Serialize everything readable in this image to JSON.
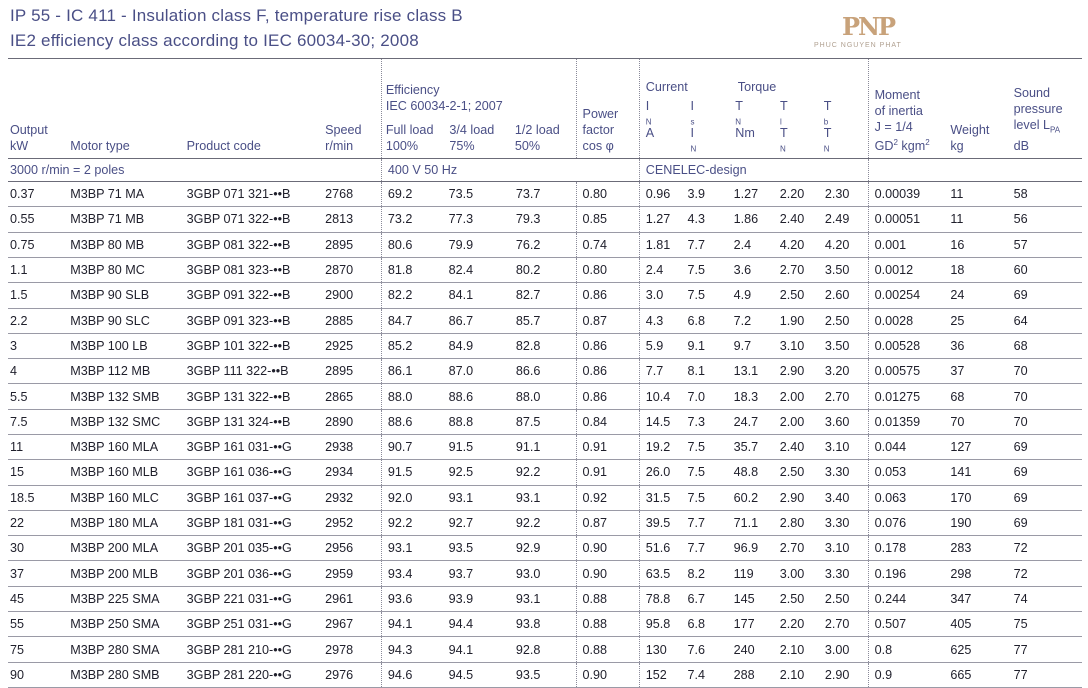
{
  "header": {
    "line1": "IP 55 - IC 411 - Insulation class F, temperature rise class B",
    "line2": "IE2 efficiency class according to IEC 60034-30; 2008"
  },
  "logo": {
    "mark": "PNP",
    "sub": "PHUC NGUYEN PHAT"
  },
  "columns": {
    "output": "Output",
    "output_unit": "kW",
    "motor_type": "Motor type",
    "product_code": "Product code",
    "speed": "Speed",
    "speed_unit": "r/min",
    "efficiency": "Efficiency",
    "efficiency_std": "IEC 60034-2-1; 2007",
    "full_load": "Full load",
    "full_load_pct": "100%",
    "three_quarter": "3/4 load",
    "three_quarter_pct": "75%",
    "half": "1/2 load",
    "half_pct": "50%",
    "pf_1": "Power",
    "pf_2": "factor",
    "pf_3": "cos φ",
    "current": "Current",
    "torque": "Torque",
    "in_sym": "I",
    "in_sub": "N",
    "in_unit": "A",
    "is_sym": "I",
    "is_sub": "s",
    "tn_sym": "T",
    "tn_sub": "N",
    "tn_unit": "Nm",
    "tl_sym": "T",
    "tl_sub": "l",
    "tb_sym": "T",
    "tb_sub": "b",
    "moi_1": "Moment",
    "moi_2": "of inertia",
    "moi_3": "J = 1/4",
    "moi_4a": "GD",
    "moi_4sup": "2",
    "moi_4b": " kgm",
    "moi_4sup2": "2",
    "weight": "Weight",
    "weight_unit": "kg",
    "sound_1": "Sound",
    "sound_2": "pressure",
    "sound_3": "level L",
    "sound_sub": "PA",
    "sound_unit": "dB"
  },
  "section": {
    "poles": "3000 r/min = 2 poles",
    "supply": "400 V 50 Hz",
    "design": "CENELEC-design"
  },
  "rows": [
    [
      "0.37",
      "M3BP 71 MA",
      "3GBP 071 321-••B",
      "2768",
      "69.2",
      "73.5",
      "73.7",
      "0.80",
      "0.96",
      "3.9",
      "1.27",
      "2.20",
      "2.30",
      "0.00039",
      "11",
      "58"
    ],
    [
      "0.55",
      "M3BP 71 MB",
      "3GBP 071 322-••B",
      "2813",
      "73.2",
      "77.3",
      "79.3",
      "0.85",
      "1.27",
      "4.3",
      "1.86",
      "2.40",
      "2.49",
      "0.00051",
      "11",
      "56"
    ],
    [
      "0.75",
      "M3BP 80 MB",
      "3GBP 081 322-••B",
      "2895",
      "80.6",
      "79.9",
      "76.2",
      "0.74",
      "1.81",
      "7.7",
      "2.4",
      "4.20",
      "4.20",
      "0.001",
      "16",
      "57"
    ],
    [
      "1.1",
      "M3BP 80 MC",
      "3GBP 081 323-••B",
      "2870",
      "81.8",
      "82.4",
      "80.2",
      "0.80",
      "2.4",
      "7.5",
      "3.6",
      "2.70",
      "3.50",
      "0.0012",
      "18",
      "60"
    ],
    [
      "1.5",
      "M3BP 90 SLB",
      "3GBP 091 322-••B",
      "2900",
      "82.2",
      "84.1",
      "82.7",
      "0.86",
      "3.0",
      "7.5",
      "4.9",
      "2.50",
      "2.60",
      "0.00254",
      "24",
      "69"
    ],
    [
      "2.2",
      "M3BP 90 SLC",
      "3GBP 091 323-••B",
      "2885",
      "84.7",
      "86.7",
      "85.7",
      "0.87",
      "4.3",
      "6.8",
      "7.2",
      "1.90",
      "2.50",
      "0.0028",
      "25",
      "64"
    ],
    [
      "3",
      "M3BP 100 LB",
      "3GBP 101 322-••B",
      "2925",
      "85.2",
      "84.9",
      "82.8",
      "0.86",
      "5.9",
      "9.1",
      "9.7",
      "3.10",
      "3.50",
      "0.00528",
      "36",
      "68"
    ],
    [
      "4",
      "M3BP 112 MB",
      "3GBP 111 322-••B",
      "2895",
      "86.1",
      "87.0",
      "86.6",
      "0.86",
      "7.7",
      "8.1",
      "13.1",
      "2.90",
      "3.20",
      "0.00575",
      "37",
      "70"
    ],
    [
      "5.5",
      "M3BP 132 SMB",
      "3GBP 131 322-••B",
      "2865",
      "88.0",
      "88.6",
      "88.0",
      "0.86",
      "10.4",
      "7.0",
      "18.3",
      "2.00",
      "2.70",
      "0.01275",
      "68",
      "70"
    ],
    [
      "7.5",
      "M3BP 132 SMC",
      "3GBP 131 324-••B",
      "2890",
      "88.6",
      "88.8",
      "87.5",
      "0.84",
      "14.5",
      "7.3",
      "24.7",
      "2.00",
      "3.60",
      "0.01359",
      "70",
      "70"
    ],
    [
      "11",
      "M3BP 160 MLA",
      "3GBP 161 031-••G",
      "2938",
      "90.7",
      "91.5",
      "91.1",
      "0.91",
      "19.2",
      "7.5",
      "35.7",
      "2.40",
      "3.10",
      "0.044",
      "127",
      "69"
    ],
    [
      "15",
      "M3BP 160 MLB",
      "3GBP 161 036-••G",
      "2934",
      "91.5",
      "92.5",
      "92.2",
      "0.91",
      "26.0",
      "7.5",
      "48.8",
      "2.50",
      "3.30",
      "0.053",
      "141",
      "69"
    ],
    [
      "18.5",
      "M3BP 160 MLC",
      "3GBP 161 037-••G",
      "2932",
      "92.0",
      "93.1",
      "93.1",
      "0.92",
      "31.5",
      "7.5",
      "60.2",
      "2.90",
      "3.40",
      "0.063",
      "170",
      "69"
    ],
    [
      "22",
      "M3BP 180 MLA",
      "3GBP 181 031-••G",
      "2952",
      "92.2",
      "92.7",
      "92.2",
      "0.87",
      "39.5",
      "7.7",
      "71.1",
      "2.80",
      "3.30",
      "0.076",
      "190",
      "69"
    ],
    [
      "30",
      "M3BP 200 MLA",
      "3GBP 201 035-••G",
      "2956",
      "93.1",
      "93.5",
      "92.9",
      "0.90",
      "51.6",
      "7.7",
      "96.9",
      "2.70",
      "3.10",
      "0.178",
      "283",
      "72"
    ],
    [
      "37",
      "M3BP 200 MLB",
      "3GBP 201 036-••G",
      "2959",
      "93.4",
      "93.7",
      "93.0",
      "0.90",
      "63.5",
      "8.2",
      "119",
      "3.00",
      "3.30",
      "0.196",
      "298",
      "72"
    ],
    [
      "45",
      "M3BP 225 SMA",
      "3GBP 221 031-••G",
      "2961",
      "93.6",
      "93.9",
      "93.1",
      "0.88",
      "78.8",
      "6.7",
      "145",
      "2.50",
      "2.50",
      "0.244",
      "347",
      "74"
    ],
    [
      "55",
      "M3BP 250 SMA",
      "3GBP 251 031-••G",
      "2967",
      "94.1",
      "94.4",
      "93.8",
      "0.88",
      "95.8",
      "6.8",
      "177",
      "2.20",
      "2.70",
      "0.507",
      "405",
      "75"
    ],
    [
      "75",
      "M3BP 280 SMA",
      "3GBP 281 210-••G",
      "2978",
      "94.3",
      "94.1",
      "92.8",
      "0.88",
      "130",
      "7.6",
      "240",
      "2.10",
      "3.00",
      "0.8",
      "625",
      "77"
    ],
    [
      "90",
      "M3BP 280 SMB",
      "3GBP 281 220-••G",
      "2976",
      "94.6",
      "94.5",
      "93.5",
      "0.90",
      "152",
      "7.4",
      "288",
      "2.10",
      "2.90",
      "0.9",
      "665",
      "77"
    ]
  ]
}
